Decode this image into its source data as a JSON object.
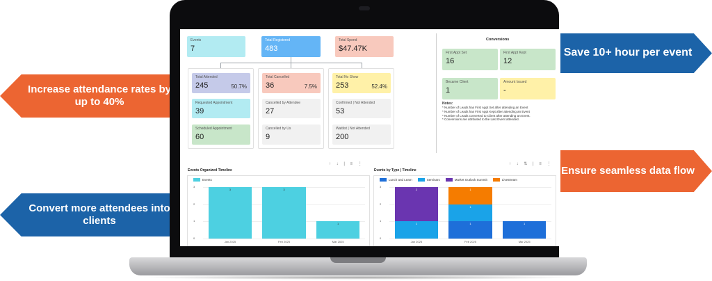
{
  "callouts": {
    "left_top": "Increase attendance rates by up to 40%",
    "left_bottom": "Convert more attendees into clients",
    "right_top": "Save 10+ hour per event",
    "right_bottom": "Ensure seamless data flow"
  },
  "colors": {
    "orange": "#ec6532",
    "blue": "#1c63a8"
  },
  "summary": {
    "events": {
      "label": "Events",
      "value": "7"
    },
    "registered": {
      "label": "Total Registered",
      "value": "483"
    },
    "spend": {
      "label": "Total Spend",
      "value": "$47.47K"
    }
  },
  "attended": {
    "total": {
      "label": "Total Attended",
      "value": "245",
      "pct": "50.7%"
    },
    "requested": {
      "label": "Requested Appointment",
      "value": "39"
    },
    "scheduled": {
      "label": "Scheduled Appointment",
      "value": "60"
    }
  },
  "cancelled": {
    "total": {
      "label": "Total Cancelled",
      "value": "36",
      "pct": "7.5%"
    },
    "by_attendee": {
      "label": "Cancelled by Attendee",
      "value": "27"
    },
    "by_us": {
      "label": "Cancelled by Us",
      "value": "9"
    }
  },
  "noshow": {
    "total": {
      "label": "Total No Show",
      "value": "253",
      "pct": "52.4%"
    },
    "confirmed": {
      "label": "Confirmed | Not Attended",
      "value": "53"
    },
    "waitlist": {
      "label": "Waitlist | Not Attended",
      "value": "200"
    }
  },
  "conversions": {
    "title": "Conversions",
    "first_set": {
      "label": "First Appt Set",
      "value": "16"
    },
    "first_kept": {
      "label": "First Appt Kept",
      "value": "12"
    },
    "became_client": {
      "label": "Became Client",
      "value": "1"
    },
    "amount_issued": {
      "label": "Amount Issued",
      "value": "-"
    },
    "notes_title": "Notes:",
    "notes": [
      "* Number of Leads has First Appt Set after attending an Event",
      "* Number of Leads has First Appt Kept after attending an Event",
      "* Number of Leads converted to Client after attending an Event.",
      "* Conversions are attributed to the Last Event attended."
    ]
  },
  "timeline": {
    "title": "Events Organized Timeline",
    "tools": "↑ ↓ | ≡ ⋮"
  },
  "bytype": {
    "title": "Events by Type | Timeline",
    "tools": "↑ ↓ ⇅ | ≡ ⋮"
  },
  "chart_data": [
    {
      "type": "bar",
      "categories": [
        "Jan 2025",
        "Feb 2025",
        "Mar 2025"
      ],
      "series": [
        {
          "name": "Events",
          "values": [
            3,
            3,
            1
          ],
          "color": "#4dd0e1"
        }
      ],
      "ylim": [
        0,
        3
      ],
      "yticks": [
        "0",
        "1",
        "2",
        "3"
      ],
      "legend": "top-left"
    },
    {
      "type": "bar",
      "stacked": true,
      "categories": [
        "Jan 2025",
        "Feb 2025",
        "Mar 2025"
      ],
      "series": [
        {
          "name": "Lunch and Learn",
          "values": [
            0,
            1,
            1
          ],
          "color": "#1e6fd9"
        },
        {
          "name": "Seminars",
          "values": [
            1,
            1,
            0
          ],
          "color": "#1aa3e8"
        },
        {
          "name": "Market Outlook Summit",
          "values": [
            2,
            0,
            0
          ],
          "color": "#6a35b0"
        },
        {
          "name": "Livestream",
          "values": [
            0,
            1,
            0
          ],
          "color": "#f57c00"
        }
      ],
      "ylim": [
        0,
        3
      ],
      "yticks": [
        "0",
        "1",
        "2",
        "3"
      ],
      "legend": "top-left"
    }
  ]
}
